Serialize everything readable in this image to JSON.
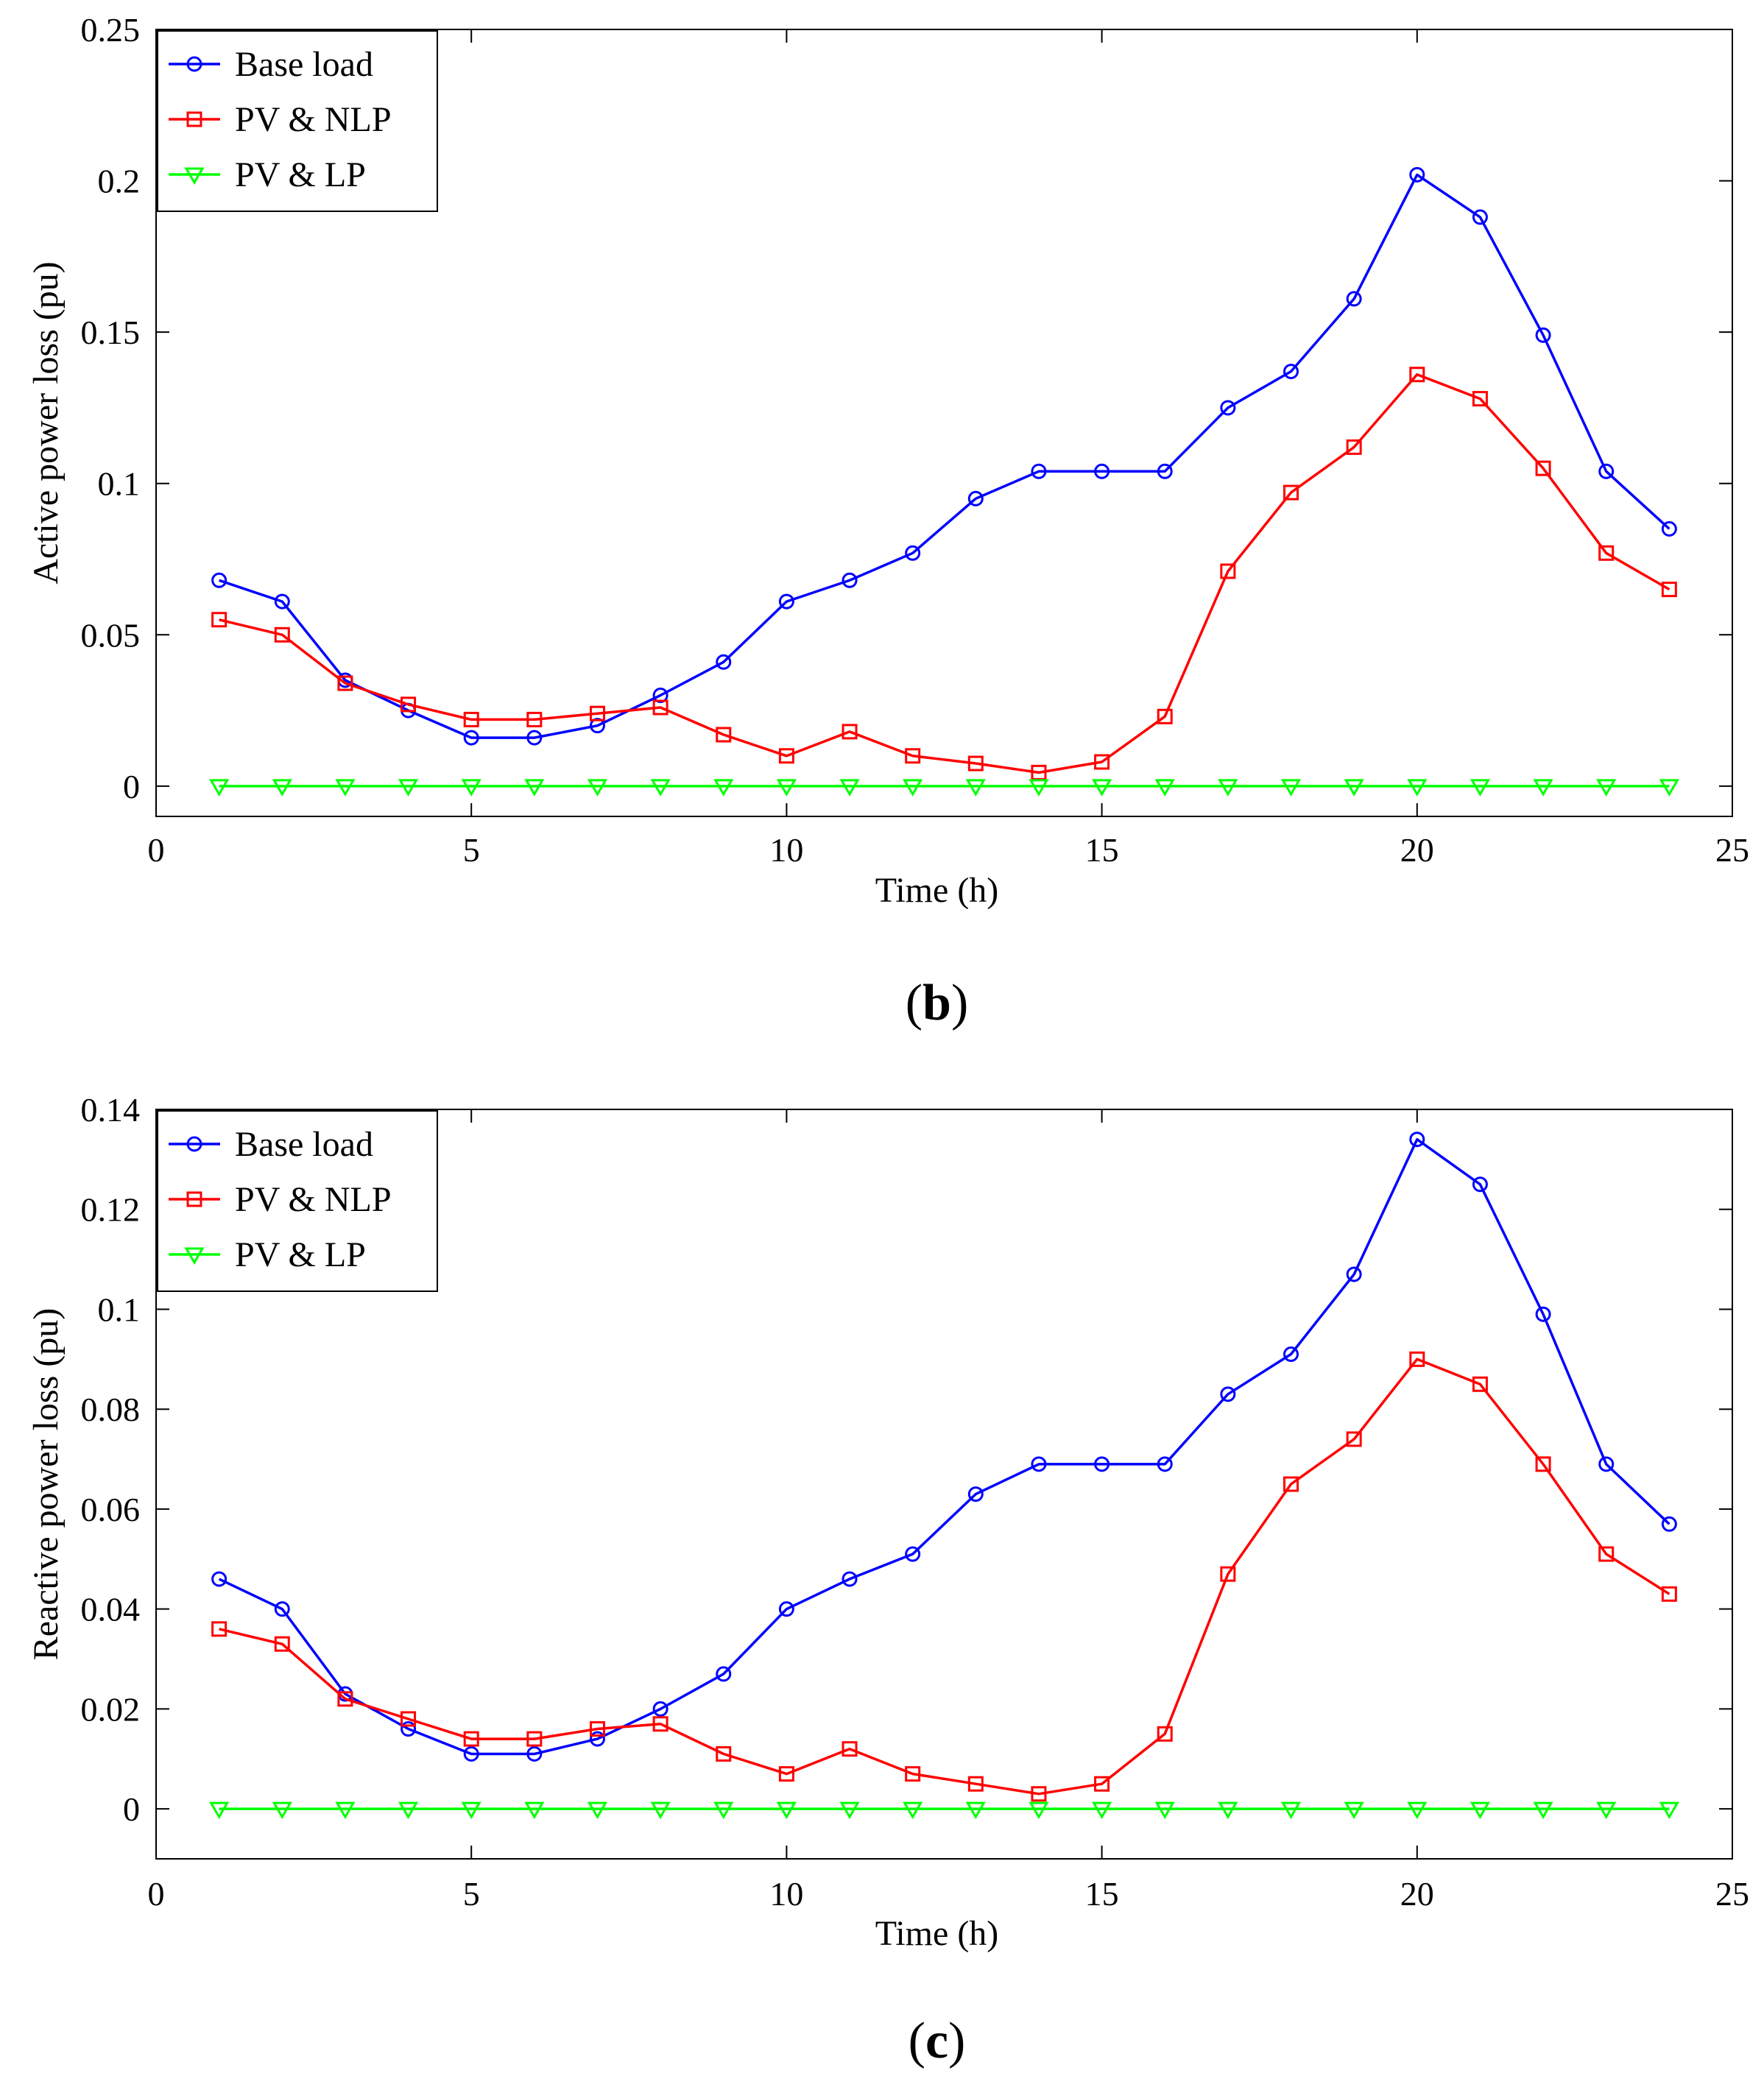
{
  "chart_data": [
    {
      "type": "line",
      "caption": "(b)",
      "caption_letter": "b",
      "caption_open": "(",
      "caption_close": ")",
      "title": "",
      "xlabel": "Time (h)",
      "ylabel": "Active power loss (pu)",
      "xlim": [
        0,
        25
      ],
      "ylim": [
        -0.01,
        0.25
      ],
      "xticks": [
        0,
        5,
        10,
        15,
        20,
        25
      ],
      "xtick_labels": [
        "0",
        "5",
        "10",
        "15",
        "20",
        "25"
      ],
      "yticks": [
        0,
        0.05,
        0.1,
        0.15,
        0.2,
        0.25
      ],
      "ytick_labels": [
        "0",
        "0.05",
        "0.1",
        "0.15",
        "0.2",
        "0.25"
      ],
      "grid": false,
      "legend_position": "top-left",
      "x": [
        1,
        2,
        3,
        4,
        5,
        6,
        7,
        8,
        9,
        10,
        11,
        12,
        13,
        14,
        15,
        16,
        17,
        18,
        19,
        20,
        21,
        22,
        23,
        24
      ],
      "series": [
        {
          "name": "Base load",
          "color": "#0000ff",
          "marker": "circle",
          "values": [
            0.068,
            0.061,
            0.035,
            0.025,
            0.016,
            0.016,
            0.02,
            0.03,
            0.041,
            0.061,
            0.068,
            0.077,
            0.095,
            0.104,
            0.104,
            0.104,
            0.125,
            0.137,
            0.161,
            0.202,
            0.188,
            0.149,
            0.104,
            0.085
          ]
        },
        {
          "name": "PV & NLP",
          "color": "#ff0000",
          "marker": "square",
          "values": [
            0.055,
            0.05,
            0.034,
            0.027,
            0.022,
            0.022,
            0.024,
            0.026,
            0.017,
            0.01,
            0.018,
            0.01,
            0.0075,
            0.0045,
            0.008,
            0.023,
            0.071,
            0.097,
            0.112,
            0.136,
            0.128,
            0.105,
            0.077,
            0.065
          ]
        },
        {
          "name": "PV & LP",
          "color": "#00ff00",
          "marker": "triangle-down",
          "values": [
            0,
            0,
            0,
            0,
            0,
            0,
            0,
            0,
            0,
            0,
            0,
            0,
            0,
            0,
            0,
            0,
            0,
            0,
            0,
            0,
            0,
            0,
            0,
            0
          ]
        }
      ]
    },
    {
      "type": "line",
      "caption": "(c)",
      "caption_letter": "c",
      "caption_open": "(",
      "caption_close": ")",
      "title": "",
      "xlabel": "Time (h)",
      "ylabel": "Reactive power loss (pu)",
      "xlim": [
        0,
        25
      ],
      "ylim": [
        -0.01,
        0.14
      ],
      "xticks": [
        0,
        5,
        10,
        15,
        20,
        25
      ],
      "xtick_labels": [
        "0",
        "5",
        "10",
        "15",
        "20",
        "25"
      ],
      "yticks": [
        0,
        0.02,
        0.04,
        0.06,
        0.08,
        0.1,
        0.12,
        0.14
      ],
      "ytick_labels": [
        "0",
        "0.02",
        "0.04",
        "0.06",
        "0.08",
        "0.1",
        "0.12",
        "0.14"
      ],
      "grid": false,
      "legend_position": "top-left",
      "x": [
        1,
        2,
        3,
        4,
        5,
        6,
        7,
        8,
        9,
        10,
        11,
        12,
        13,
        14,
        15,
        16,
        17,
        18,
        19,
        20,
        21,
        22,
        23,
        24
      ],
      "series": [
        {
          "name": "Base load",
          "color": "#0000ff",
          "marker": "circle",
          "values": [
            0.046,
            0.04,
            0.023,
            0.016,
            0.011,
            0.011,
            0.014,
            0.02,
            0.027,
            0.04,
            0.046,
            0.051,
            0.063,
            0.069,
            0.069,
            0.069,
            0.083,
            0.091,
            0.107,
            0.134,
            0.125,
            0.099,
            0.069,
            0.057
          ]
        },
        {
          "name": "PV & NLP",
          "color": "#ff0000",
          "marker": "square",
          "values": [
            0.036,
            0.033,
            0.022,
            0.018,
            0.014,
            0.014,
            0.016,
            0.017,
            0.011,
            0.007,
            0.012,
            0.007,
            0.005,
            0.003,
            0.005,
            0.015,
            0.047,
            0.065,
            0.074,
            0.09,
            0.085,
            0.069,
            0.051,
            0.043
          ]
        },
        {
          "name": "PV & LP",
          "color": "#00ff00",
          "marker": "triangle-down",
          "values": [
            0,
            0,
            0,
            0,
            0,
            0,
            0,
            0,
            0,
            0,
            0,
            0,
            0,
            0,
            0,
            0,
            0,
            0,
            0,
            0,
            0,
            0,
            0,
            0
          ]
        }
      ]
    }
  ]
}
